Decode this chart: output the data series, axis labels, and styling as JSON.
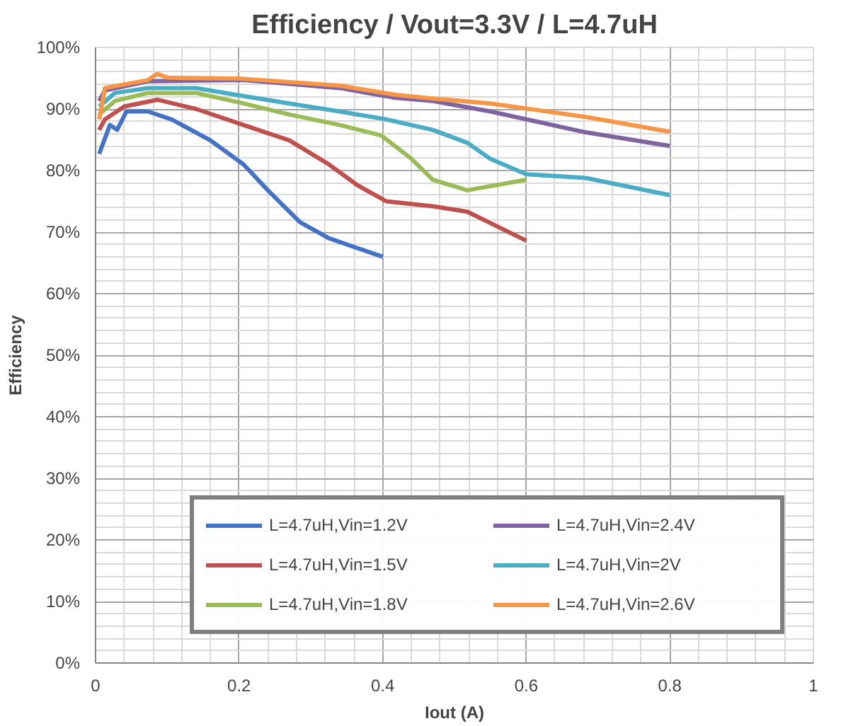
{
  "chart_data": {
    "type": "line",
    "title": "Efficiency / Vout=3.3V / L=4.7uH",
    "xlabel": "Iout (A)",
    "ylabel": "Efficiency",
    "xlim": [
      0,
      1
    ],
    "xticks": [
      0,
      0.2,
      0.4,
      0.6,
      0.8,
      1
    ],
    "ylim": [
      0,
      100
    ],
    "yticks": [
      {
        "value": 0,
        "label": "0%"
      },
      {
        "value": 10,
        "label": "10%"
      },
      {
        "value": 20,
        "label": "20%"
      },
      {
        "value": 30,
        "label": "30%"
      },
      {
        "value": 40,
        "label": "40%"
      },
      {
        "value": 50,
        "label": "50%"
      },
      {
        "value": 60,
        "label": "60%"
      },
      {
        "value": 70,
        "label": "70%"
      },
      {
        "value": 80,
        "label": "80%"
      },
      {
        "value": 90,
        "label": "90%"
      },
      {
        "value": 100,
        "label": "100%"
      }
    ],
    "grid": true,
    "legend": "bottom right",
    "marker": "none",
    "line_style": "solid",
    "series": [
      {
        "name": "L=4.7uH,Vin=1.2V",
        "color": "#4472c4",
        "x": [
          0.005,
          0.02,
          0.03,
          0.043,
          0.073,
          0.106,
          0.16,
          0.206,
          0.24,
          0.285,
          0.325,
          0.4
        ],
        "values": [
          82.7,
          87.4,
          86.6,
          89.6,
          89.6,
          88.3,
          84.9,
          81,
          76.8,
          71.6,
          69,
          66
        ]
      },
      {
        "name": "L=4.7uH,Vin=1.5V",
        "color": "#c0504d",
        "x": [
          0.005,
          0.013,
          0.04,
          0.086,
          0.14,
          0.206,
          0.27,
          0.325,
          0.365,
          0.405,
          0.47,
          0.518,
          0.6
        ],
        "values": [
          86.6,
          88.3,
          90.4,
          91.5,
          90,
          87.4,
          84.9,
          81,
          77.6,
          75,
          74.2,
          73.3,
          68.6
        ]
      },
      {
        "name": "L=4.7uH,Vin=1.8V",
        "color": "#9bbb59",
        "x": [
          0.005,
          0.027,
          0.073,
          0.14,
          0.206,
          0.27,
          0.34,
          0.398,
          0.44,
          0.47,
          0.518,
          0.6
        ],
        "values": [
          89.1,
          91.3,
          92.6,
          92.6,
          90.9,
          89.1,
          87.4,
          85.7,
          81.9,
          78.5,
          76.8,
          78.5
        ]
      },
      {
        "name": "L=4.7uH,Vin=2.4V",
        "color": "#8064a2",
        "x": [
          0.005,
          0.013,
          0.073,
          0.206,
          0.34,
          0.418,
          0.47,
          0.55,
          0.683,
          0.8
        ],
        "values": [
          91.3,
          93,
          94.5,
          94.7,
          93.4,
          91.8,
          91.3,
          89.6,
          86.2,
          84
        ]
      },
      {
        "name": "L=4.7uH,Vin=2V",
        "color": "#4bacc6",
        "x": [
          0.005,
          0.027,
          0.073,
          0.14,
          0.206,
          0.27,
          0.34,
          0.405,
          0.47,
          0.518,
          0.55,
          0.6,
          0.683,
          0.8
        ],
        "values": [
          90.4,
          92.6,
          93.4,
          93.4,
          92.1,
          90.9,
          89.6,
          88.3,
          86.6,
          84.5,
          81.9,
          79.4,
          78.8,
          76
        ]
      },
      {
        "name": "L=4.7uH,Vin=2.6V",
        "color": "#f79646",
        "x": [
          0.005,
          0.013,
          0.073,
          0.086,
          0.1,
          0.206,
          0.34,
          0.418,
          0.47,
          0.55,
          0.683,
          0.8
        ],
        "values": [
          88.3,
          93.4,
          94.7,
          95.7,
          95.1,
          94.9,
          93.8,
          92.3,
          91.7,
          90.9,
          88.7,
          86.3
        ]
      }
    ]
  }
}
